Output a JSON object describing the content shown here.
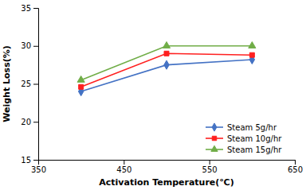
{
  "chart_data": {
    "type": "line",
    "x": [
      400,
      500,
      600
    ],
    "series": [
      {
        "name": "Steam 5g/hr",
        "color": "#4472C4",
        "marker": "diamond",
        "values": [
          24.0,
          27.5,
          28.2
        ]
      },
      {
        "name": "Steam 10g/hr",
        "color": "#FF2020",
        "marker": "square",
        "values": [
          24.6,
          29.0,
          28.8
        ]
      },
      {
        "name": "Steam 15g/hr",
        "color": "#70AD47",
        "marker": "triangle",
        "values": [
          25.5,
          30.0,
          30.0
        ]
      }
    ],
    "xlabel": "Activation Temperature(℃)",
    "ylabel": "Weight Loss(%)",
    "xlim": [
      350,
      650
    ],
    "ylim": [
      15,
      35
    ],
    "xticks": [
      350,
      450,
      550,
      650
    ],
    "yticks": [
      15,
      20,
      25,
      30,
      35
    ],
    "grid": false,
    "legend": "lower right"
  }
}
